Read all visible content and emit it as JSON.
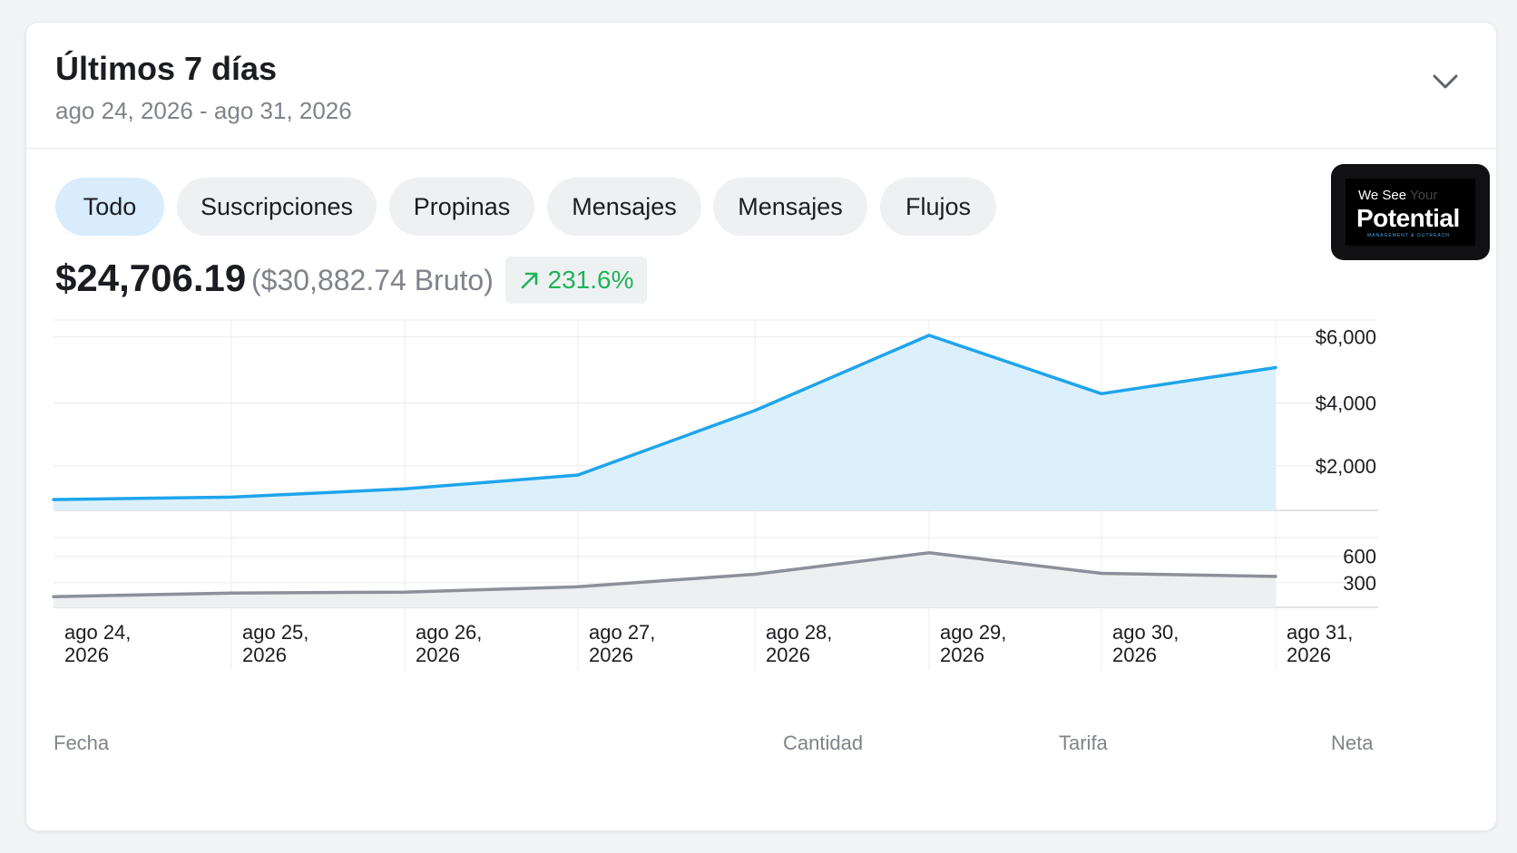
{
  "header": {
    "title": "Últimos 7 días",
    "range": "ago 24, 2026 - ago 31, 2026"
  },
  "tabs": [
    {
      "label": "Todo",
      "active": true
    },
    {
      "label": "Suscripciones",
      "active": false
    },
    {
      "label": "Propinas",
      "active": false
    },
    {
      "label": "Mensajes",
      "active": false
    },
    {
      "label": "Mensajes",
      "active": false
    },
    {
      "label": "Flujos",
      "active": false
    }
  ],
  "logo": {
    "line1": "We See",
    "line1_faded": "Your",
    "main": "Potential",
    "sub": "MANAGEMENT & OUTREACH"
  },
  "summary": {
    "net": "$24,706.19",
    "gross": "($30,882.74 Bruto)",
    "change": "231.6%",
    "change_direction": "up"
  },
  "colors": {
    "accent_line": "#1ea5ec",
    "accent_fill": "#dcf0fc",
    "secondary_line": "#8c909a",
    "secondary_fill": "#eeeff1",
    "positive": "#1fb35a",
    "active_tab": "#d8ecfb"
  },
  "chart_data": [
    {
      "type": "area",
      "x": [
        "ago 24, 2026",
        "ago 25, 2026",
        "ago 26, 2026",
        "ago 27, 2026",
        "ago 28, 2026",
        "ago 29, 2026",
        "ago 30, 2026",
        "ago 31, 2026"
      ],
      "values": [
        350,
        430,
        700,
        1150,
        3250,
        5700,
        3800,
        4650
      ],
      "y_ticks": [
        "$2,000",
        "$4,000",
        "$6,000"
      ],
      "y_tick_values": [
        1450,
        3500,
        5650
      ],
      "ylim": [
        0,
        6200
      ],
      "grid": true
    },
    {
      "type": "area",
      "x": [
        "ago 24, 2026",
        "ago 25, 2026",
        "ago 26, 2026",
        "ago 27, 2026",
        "ago 28, 2026",
        "ago 29, 2026",
        "ago 30, 2026",
        "ago 31, 2026"
      ],
      "values": [
        120,
        160,
        170,
        230,
        370,
        610,
        380,
        345
      ],
      "y_ticks": [
        "300",
        "600"
      ],
      "y_tick_values": [
        275,
        570
      ],
      "ylim": [
        0,
        780
      ],
      "grid": true
    }
  ],
  "x_labels": [
    {
      "line1": "ago 24,",
      "line2": "2026"
    },
    {
      "line1": "ago 25,",
      "line2": "2026"
    },
    {
      "line1": "ago 26,",
      "line2": "2026"
    },
    {
      "line1": "ago 27,",
      "line2": "2026"
    },
    {
      "line1": "ago 28,",
      "line2": "2026"
    },
    {
      "line1": "ago 29,",
      "line2": "2026"
    },
    {
      "line1": "ago 30,",
      "line2": "2026"
    },
    {
      "line1": "ago 31,",
      "line2": "2026"
    }
  ],
  "table_headers": {
    "date": "Fecha",
    "amount": "Cantidad",
    "fee": "Tarifa",
    "net": "Neta"
  }
}
